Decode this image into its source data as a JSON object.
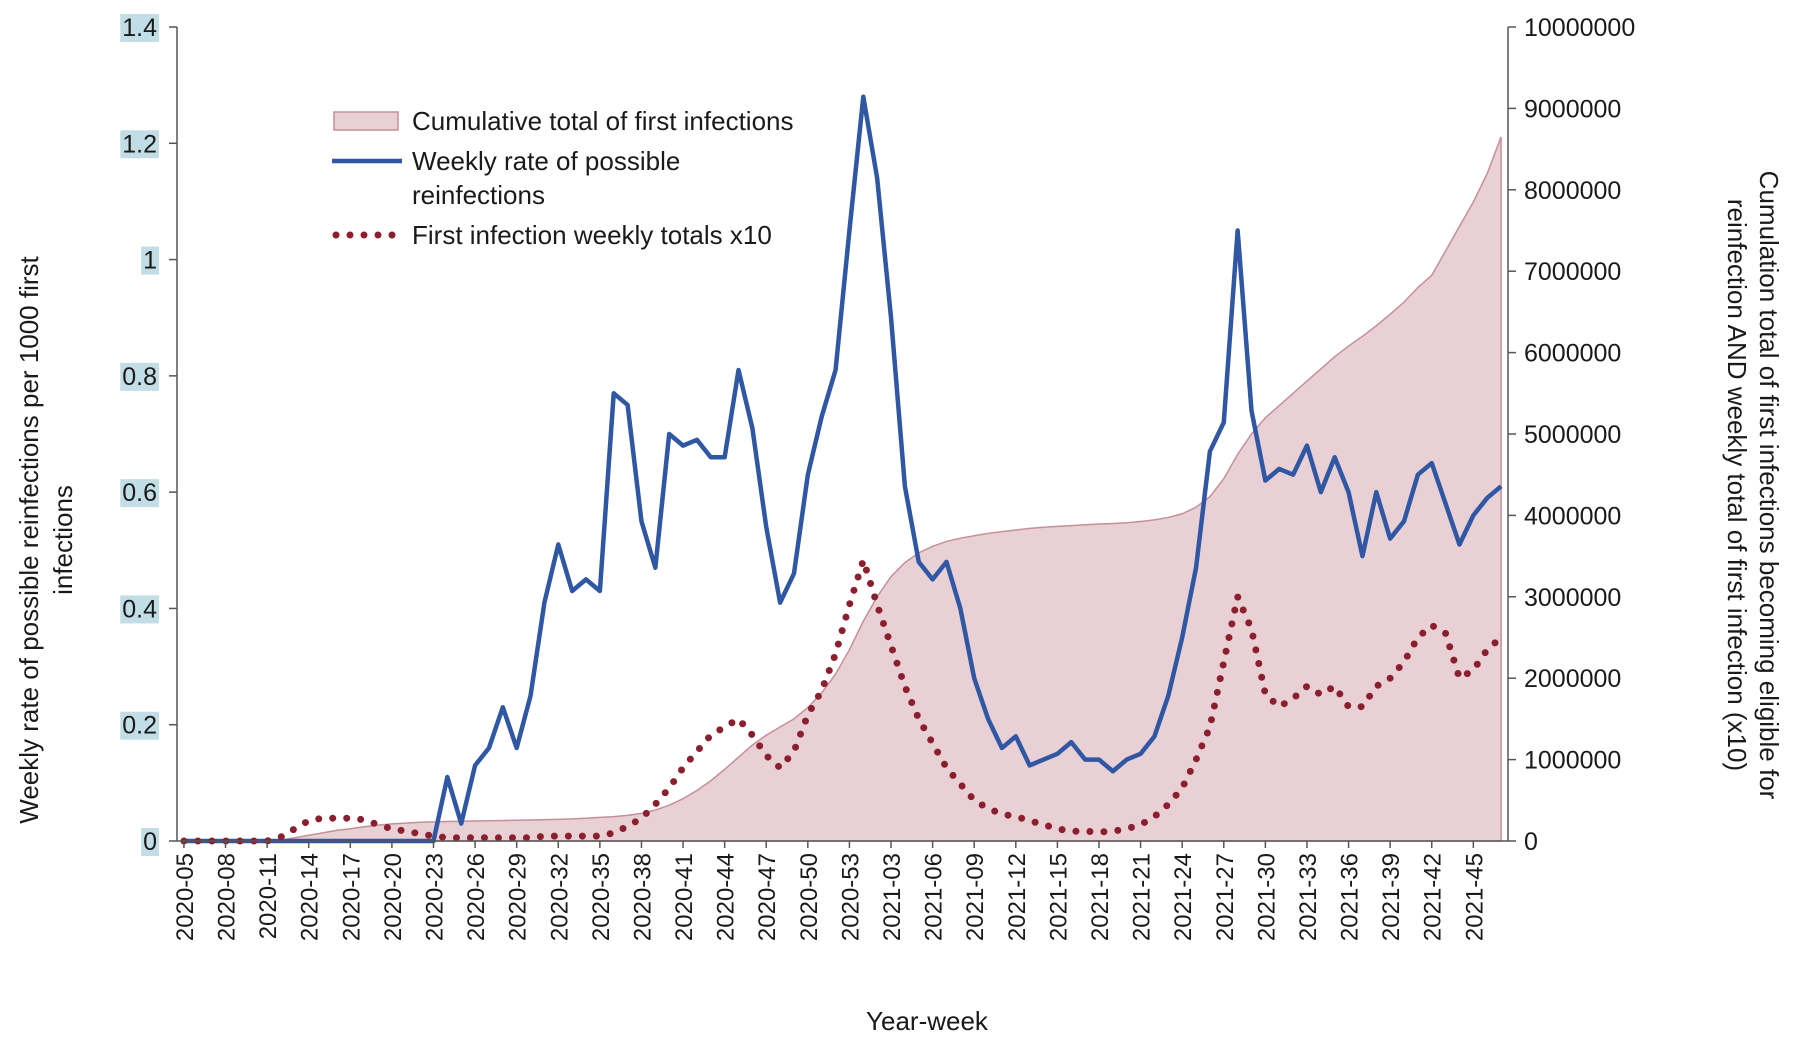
{
  "chart_data": {
    "type": "line",
    "x_label": "Year-week",
    "y_label": [
      "Weekly rate of  possible  reinfections per 1000 first",
      "infections"
    ],
    "y2_label": [
      "Cumulation total of first infections becoming eligible for",
      "reinfection AND weekly total of first infection (x10)"
    ],
    "categories": [
      "2020-05",
      null,
      null,
      "2020-08",
      null,
      null,
      "2020-11",
      null,
      null,
      "2020-14",
      null,
      null,
      "2020-17",
      null,
      null,
      "2020-20",
      null,
      null,
      "2020-23",
      null,
      null,
      "2020-26",
      null,
      null,
      "2020-29",
      null,
      null,
      "2020-32",
      null,
      null,
      "2020-35",
      null,
      null,
      "2020-38",
      null,
      null,
      "2020-41",
      null,
      null,
      "2020-44",
      null,
      null,
      "2020-47",
      null,
      null,
      "2020-50",
      null,
      null,
      "2020-53",
      null,
      null,
      "2021-03",
      null,
      null,
      "2021-06",
      null,
      null,
      "2021-09",
      null,
      null,
      "2021-12",
      null,
      null,
      "2021-15",
      null,
      null,
      "2021-18",
      null,
      null,
      "2021-21",
      null,
      null,
      "2021-24",
      null,
      null,
      "2021-27",
      null,
      null,
      "2021-30",
      null,
      null,
      "2021-33",
      null,
      null,
      "2021-36",
      null,
      null,
      "2021-39",
      null,
      null,
      "2021-42",
      null,
      null,
      "2021-45",
      null,
      null
    ],
    "ylim": [
      0,
      1.4
    ],
    "yticks": [
      0,
      0.2,
      0.4,
      0.6,
      0.8,
      1,
      1.2,
      1.4
    ],
    "y2lim": [
      0,
      10000000
    ],
    "y2ticks": [
      0,
      1000000,
      2000000,
      3000000,
      4000000,
      5000000,
      6000000,
      7000000,
      8000000,
      9000000,
      10000000
    ],
    "series": [
      {
        "name": "Cumulative total of first infections",
        "style": "area",
        "axis": "y2",
        "color": "#e8d0d4",
        "edge_color": "#c4909a",
        "values": [
          0,
          0,
          0,
          0,
          0,
          0,
          0,
          10000,
          40000,
          70000,
          100000,
          130000,
          150000,
          175000,
          195000,
          210000,
          220000,
          230000,
          235000,
          240000,
          243000,
          246000,
          249000,
          252000,
          255000,
          258000,
          262000,
          266000,
          272000,
          280000,
          290000,
          300000,
          315000,
          340000,
          380000,
          440000,
          520000,
          620000,
          740000,
          880000,
          1030000,
          1180000,
          1300000,
          1400000,
          1500000,
          1640000,
          1820000,
          2050000,
          2350000,
          2700000,
          3000000,
          3250000,
          3420000,
          3540000,
          3620000,
          3680000,
          3720000,
          3750000,
          3780000,
          3800000,
          3820000,
          3840000,
          3855000,
          3865000,
          3875000,
          3885000,
          3895000,
          3900000,
          3910000,
          3925000,
          3945000,
          3975000,
          4020000,
          4100000,
          4230000,
          4450000,
          4750000,
          5000000,
          5200000,
          5350000,
          5500000,
          5650000,
          5800000,
          5950000,
          6080000,
          6200000,
          6330000,
          6470000,
          6620000,
          6800000,
          6950000,
          7250000,
          7550000,
          7850000,
          8200000,
          8650000
        ]
      },
      {
        "name": "Weekly rate of possible reinfections",
        "style": "solid",
        "color": "#2f57a3",
        "values": [
          0,
          0,
          0,
          0,
          0,
          0,
          0,
          0,
          0,
          0,
          0,
          0,
          0,
          0,
          0,
          0,
          0,
          0,
          0,
          0.11,
          0.03,
          0.13,
          0.16,
          0.23,
          0.16,
          0.25,
          0.41,
          0.51,
          0.43,
          0.45,
          0.43,
          0.77,
          0.75,
          0.55,
          0.47,
          0.7,
          0.68,
          0.69,
          0.66,
          0.66,
          0.81,
          0.71,
          0.54,
          0.41,
          0.46,
          0.63,
          0.73,
          0.81,
          1.05,
          1.28,
          1.14,
          0.9,
          0.61,
          0.48,
          0.45,
          0.48,
          0.4,
          0.28,
          0.21,
          0.16,
          0.18,
          0.13,
          0.14,
          0.15,
          0.17,
          0.14,
          0.14,
          0.12,
          0.14,
          0.15,
          0.18,
          0.25,
          0.35,
          0.47,
          0.67,
          0.72,
          1.05,
          0.74,
          0.62,
          0.64,
          0.63,
          0.68,
          0.6,
          0.66,
          0.6,
          0.49,
          0.6,
          0.52,
          0.55,
          0.63,
          0.65,
          0.58,
          0.51,
          0.56,
          0.59,
          0.61
        ]
      },
      {
        "name": "First infection weekly totals x10",
        "style": "dotted",
        "axis": "y2",
        "color": "#8c1f2e",
        "values": [
          0,
          0,
          0,
          0,
          0,
          0,
          0,
          50000,
          150000,
          250000,
          280000,
          280000,
          280000,
          260000,
          200000,
          150000,
          120000,
          90000,
          60000,
          40000,
          40000,
          40000,
          40000,
          40000,
          40000,
          40000,
          60000,
          60000,
          60000,
          60000,
          60000,
          100000,
          180000,
          280000,
          450000,
          650000,
          900000,
          1100000,
          1300000,
          1400000,
          1500000,
          1300000,
          1050000,
          900000,
          1100000,
          1550000,
          1850000,
          2300000,
          2900000,
          3450000,
          2900000,
          2400000,
          1900000,
          1500000,
          1200000,
          900000,
          700000,
          500000,
          400000,
          330000,
          300000,
          250000,
          200000,
          150000,
          120000,
          120000,
          110000,
          120000,
          150000,
          200000,
          300000,
          450000,
          650000,
          1000000,
          1400000,
          2200000,
          3000000,
          2600000,
          1800000,
          1650000,
          1750000,
          1900000,
          1800000,
          1900000,
          1650000,
          1650000,
          1900000,
          2000000,
          2200000,
          2500000,
          2650000,
          2550000,
          2000000,
          2100000,
          2350000,
          2500000
        ]
      }
    ],
    "tick_label_highlight": "#c3dde7",
    "axis_color": "#555555"
  }
}
